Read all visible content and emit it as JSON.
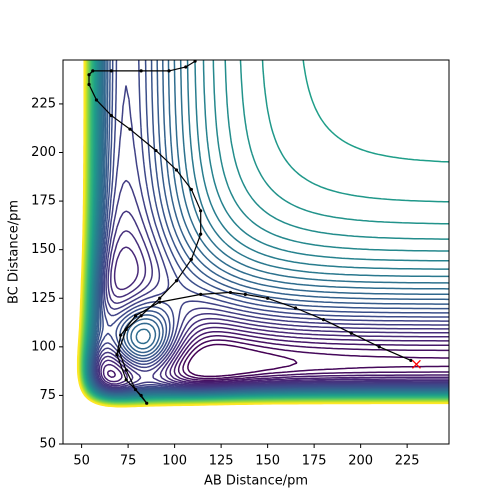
{
  "chart_data": {
    "type": "contour",
    "xlabel": "AB Distance/pm",
    "ylabel": "BC Distance/pm",
    "xlim": [
      40,
      247.5
    ],
    "ylim": [
      50,
      247.6
    ],
    "xticks": [
      50,
      75,
      100,
      125,
      150,
      175,
      200,
      225
    ],
    "yticks": [
      50,
      75,
      100,
      125,
      150,
      175,
      200,
      225
    ],
    "colormap": "viridis",
    "trajectory": {
      "color": "#000000",
      "x": [
        227,
        210,
        195,
        180,
        165,
        150,
        138,
        130,
        114,
        92,
        79,
        71,
        69,
        74,
        82,
        85,
        79,
        74,
        70,
        74,
        82,
        92,
        101,
        109,
        114,
        114,
        109,
        101,
        90,
        76,
        66,
        58,
        54,
        54,
        56,
        66,
        82,
        97,
        106,
        111
      ],
      "y": [
        93,
        100,
        107,
        114,
        120,
        125,
        127,
        128,
        127,
        123,
        116,
        106,
        96,
        83,
        75,
        71,
        78,
        88,
        98,
        109,
        116,
        125,
        134,
        145,
        158,
        170,
        181,
        191,
        201,
        212,
        219,
        227,
        235,
        240,
        242,
        242,
        242,
        242,
        244,
        247
      ]
    },
    "marker_point": {
      "x": 230,
      "y": 91,
      "color": "#ff0000"
    }
  }
}
